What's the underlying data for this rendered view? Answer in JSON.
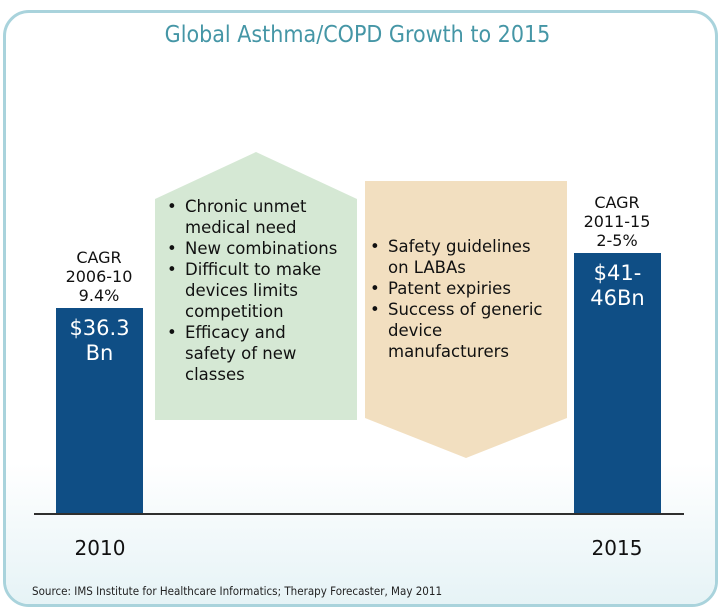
{
  "title": "Global Asthma/COPD Growth to 2015",
  "source": "Source: IMS Institute for Healthcare Informatics; Therapy Forecaster, May 2011",
  "colors": {
    "bar": "#0f4e85",
    "up_arrow": "#d5e8d4",
    "down_arrow": "#f2dfc0",
    "title": "#4596a6",
    "frame": "#a9d3dc"
  },
  "chart_data": {
    "type": "bar",
    "categories": [
      "2010",
      "2015"
    ],
    "values": [
      36.3,
      46
    ],
    "value_range_2015": [
      41,
      46
    ],
    "data_labels": [
      [
        "$36.3",
        "Bn"
      ],
      [
        "$41-",
        "46Bn"
      ]
    ],
    "ylim": [
      0,
      61
    ],
    "cagr_labels": [
      [
        "CAGR",
        "2006-10",
        "9.4%"
      ],
      [
        "CAGR",
        "2011-15",
        "2-5%"
      ]
    ],
    "drivers": {
      "growth": [
        [
          "Chronic unmet",
          "medical need"
        ],
        [
          "New combinations"
        ],
        [
          "Difficult to make",
          "devices limits",
          "competition"
        ],
        [
          "Efficacy and",
          "safety of new",
          "classes"
        ]
      ],
      "decline": [
        [
          "Safety guidelines",
          "on LABAs"
        ],
        [
          "Patent expiries"
        ],
        [
          "Success of generic",
          "device",
          "manufacturers"
        ]
      ]
    }
  }
}
